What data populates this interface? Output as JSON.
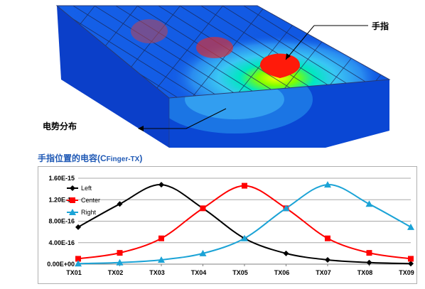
{
  "figure": {
    "finger_label": "手指",
    "potential_label": "电势分布"
  },
  "chart": {
    "title_main": "手指位置的电容(C",
    "title_sub": "Finger-TX",
    "title_end": ")"
  },
  "chart_data": {
    "type": "line",
    "title": "手指位置的电容(CFinger-TX)",
    "categories": [
      "TX01",
      "TX02",
      "TX03",
      "TX04",
      "TX05",
      "TX06",
      "TX07",
      "TX08",
      "TX09"
    ],
    "ylim": [
      0,
      1.6e-15
    ],
    "yticks": [
      "0.00E+00",
      "4.00E-16",
      "8.00E-16",
      "1.20E-15",
      "1.60E-15"
    ],
    "grid": true,
    "legend": "top-left",
    "series": [
      {
        "name": "Left",
        "color": "#000000",
        "marker": "diamond",
        "values": [
          6.9e-16,
          1.12e-15,
          1.48e-15,
          1.04e-15,
          4.8e-16,
          2e-16,
          8e-17,
          3e-17,
          1e-17
        ]
      },
      {
        "name": "Center",
        "color": "#ff0000",
        "marker": "square",
        "values": [
          1e-16,
          2.1e-16,
          4.8e-16,
          1.04e-15,
          1.46e-15,
          1.04e-15,
          4.8e-16,
          2.1e-16,
          1e-16
        ]
      },
      {
        "name": "Right",
        "color": "#1ba3d6",
        "marker": "triangle",
        "values": [
          1e-17,
          3e-17,
          8e-17,
          2e-16,
          4.8e-16,
          1.04e-15,
          1.48e-15,
          1.12e-15,
          6.9e-16
        ]
      }
    ]
  }
}
